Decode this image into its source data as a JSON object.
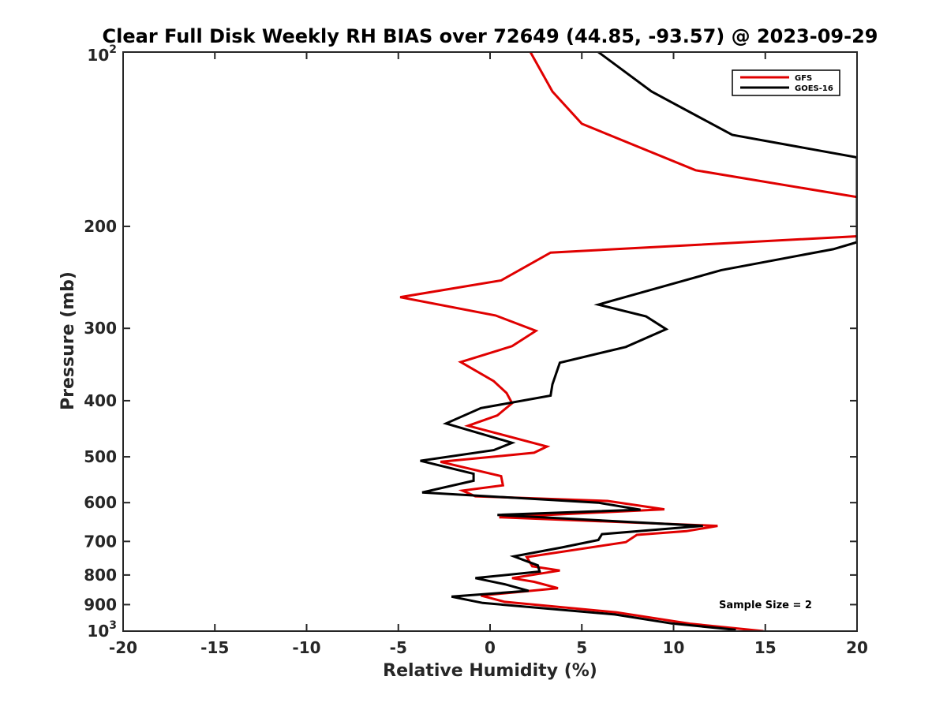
{
  "chart_data": {
    "type": "line",
    "title": "Clear Full Disk Weekly RH BIAS over 72649 (44.85, -93.57) @ 2023-09-29",
    "xlabel": "Relative Humidity (%)",
    "ylabel": "Pressure (mb)",
    "xlim": [
      -20,
      20
    ],
    "ylim": [
      100,
      1000
    ],
    "y_scale": "log",
    "y_reversed": true,
    "x_ticks": [
      -20,
      -15,
      -10,
      -5,
      0,
      5,
      10,
      15,
      20
    ],
    "x_tick_labels": [
      "-20",
      "-15",
      "-10",
      "-5",
      "0",
      "5",
      "10",
      "15",
      "20"
    ],
    "y_ticks": [
      100,
      200,
      300,
      400,
      500,
      600,
      700,
      800,
      900,
      1000
    ],
    "y_tick_labels": [
      {
        "base": "10",
        "exp": "2"
      },
      {
        "base": "200",
        "exp": ""
      },
      {
        "base": "300",
        "exp": ""
      },
      {
        "base": "400",
        "exp": ""
      },
      {
        "base": "500",
        "exp": ""
      },
      {
        "base": "600",
        "exp": ""
      },
      {
        "base": "700",
        "exp": ""
      },
      {
        "base": "800",
        "exp": ""
      },
      {
        "base": "900",
        "exp": ""
      },
      {
        "base": "10",
        "exp": "3"
      }
    ],
    "grid": false,
    "legend_position": "top-right",
    "annotation": "Sample Size = 2",
    "series": [
      {
        "name": "GFS",
        "color": "#e00000",
        "points": [
          [
            2.2,
            100
          ],
          [
            3.4,
            117
          ],
          [
            5.0,
            133
          ],
          [
            11.2,
            160
          ],
          [
            20,
            178
          ],
          [
            20,
            208
          ],
          [
            3.3,
            222
          ],
          [
            0.6,
            248
          ],
          [
            -4.9,
            265
          ],
          [
            0.3,
            285
          ],
          [
            2.5,
            303
          ],
          [
            1.2,
            322
          ],
          [
            -1.6,
            343
          ],
          [
            0.2,
            370
          ],
          [
            0.9,
            388
          ],
          [
            1.2,
            404
          ],
          [
            0.4,
            424
          ],
          [
            -1.2,
            442
          ],
          [
            3.1,
            480
          ],
          [
            2.4,
            492
          ],
          [
            -2.7,
            510
          ],
          [
            0.6,
            540
          ],
          [
            0.7,
            560
          ],
          [
            -1.5,
            572
          ],
          [
            -0.8,
            585
          ],
          [
            6.4,
            596
          ],
          [
            9.5,
            616
          ],
          [
            0.5,
            636
          ],
          [
            12.4,
            658
          ],
          [
            10.7,
            672
          ],
          [
            8.0,
            682
          ],
          [
            7.4,
            702
          ],
          [
            2.0,
            745
          ],
          [
            2.3,
            773
          ],
          [
            3.8,
            786
          ],
          [
            1.2,
            810
          ],
          [
            2.4,
            822
          ],
          [
            3.7,
            843
          ],
          [
            -0.5,
            868
          ],
          [
            0.8,
            890
          ],
          [
            6.9,
            928
          ],
          [
            10.9,
            971
          ],
          [
            14.9,
            1000
          ]
        ]
      },
      {
        "name": "GOES-16",
        "color": "#000000",
        "points": [
          [
            5.9,
            100
          ],
          [
            8.8,
            117
          ],
          [
            13.2,
            139
          ],
          [
            20,
            152
          ],
          [
            20,
            213
          ],
          [
            18.7,
            219
          ],
          [
            12.6,
            238
          ],
          [
            5.9,
            273
          ],
          [
            8.5,
            286
          ],
          [
            9.6,
            301
          ],
          [
            7.4,
            323
          ],
          [
            3.8,
            344
          ],
          [
            3.4,
            375
          ],
          [
            3.3,
            392
          ],
          [
            -0.5,
            412
          ],
          [
            -2.4,
            438
          ],
          [
            1.2,
            473
          ],
          [
            0.2,
            487
          ],
          [
            -3.8,
            508
          ],
          [
            -0.9,
            535
          ],
          [
            -0.9,
            550
          ],
          [
            -3.7,
            576
          ],
          [
            5.9,
            600
          ],
          [
            8.2,
            617
          ],
          [
            0.4,
            630
          ],
          [
            11.6,
            658
          ],
          [
            6.1,
            680
          ],
          [
            5.9,
            696
          ],
          [
            3.9,
            717
          ],
          [
            1.3,
            743
          ],
          [
            2.6,
            770
          ],
          [
            2.7,
            789
          ],
          [
            -0.8,
            810
          ],
          [
            0.8,
            830
          ],
          [
            2.1,
            852
          ],
          [
            -2.1,
            872
          ],
          [
            -0.4,
            894
          ],
          [
            6.8,
            936
          ],
          [
            9.9,
            970
          ],
          [
            13.4,
            995
          ]
        ]
      }
    ]
  }
}
